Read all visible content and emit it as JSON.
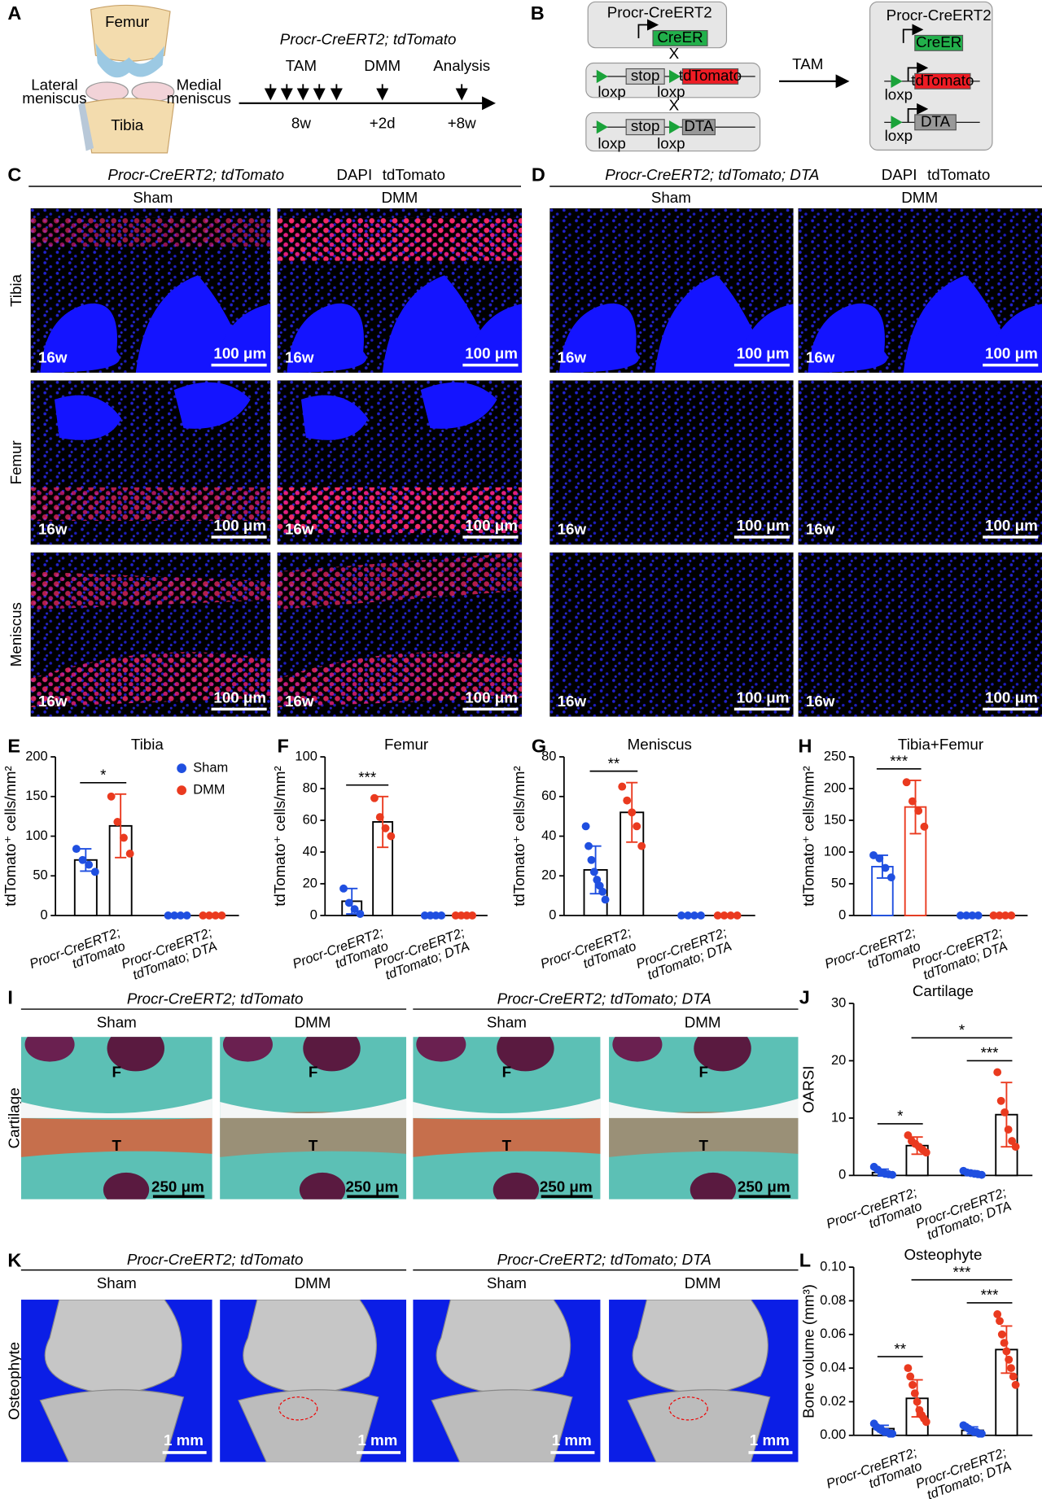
{
  "panel_labels": [
    "A",
    "B",
    "C",
    "D",
    "E",
    "F",
    "G",
    "H",
    "I",
    "J",
    "K",
    "L"
  ],
  "panel_a": {
    "femur": "Femur",
    "lateral": [
      "Lateral",
      "meniscus"
    ],
    "medial": [
      "Medial",
      "meniscus"
    ],
    "tibia": "Tibia",
    "genotype": "Procr-CreERT2; tdTomato",
    "events": [
      "TAM",
      "DMM",
      "Analysis"
    ],
    "times": [
      "8w",
      "+2d",
      "+8w"
    ]
  },
  "panel_b": {
    "driver": "Procr-CreERT2",
    "creer": "CreER",
    "stop": "stop",
    "loxp": "loxp",
    "reporter": "tdTomato",
    "dta": "DTA",
    "cross": "X",
    "tam": "TAM"
  },
  "imaging": {
    "genotypes": [
      "Procr-CreERT2; tdTomato",
      "Procr-CreERT2; tdTomato; DTA"
    ],
    "stains": [
      "DAPI",
      "tdTomato"
    ],
    "conditions": [
      "Sham",
      "DMM"
    ],
    "tissues": [
      "Tibia",
      "Femur",
      "Meniscus"
    ],
    "age": "16w",
    "scale": "100 μm"
  },
  "histology": {
    "row": "Cartilage",
    "femur_mark": "F",
    "tibia_mark": "T",
    "scale": "250 μm"
  },
  "microct": {
    "row": "Osteophyte",
    "scale": "1 mm"
  },
  "chart_data": [
    {
      "type": "bar",
      "title": "Tibia",
      "ylabel": "tdTomato⁺ cells/mm²",
      "ylim": [
        0,
        200
      ],
      "yticks": [
        0,
        50,
        100,
        150,
        200
      ],
      "legend": "upper right",
      "bar_edge": "#000000",
      "categories": [
        [
          "Procr-CreERT2;",
          "tdTomato"
        ],
        [
          "Procr-CreERT2;",
          "tdTomato; DTA"
        ]
      ],
      "series": [
        {
          "name": "Sham",
          "color": "#1f4fe0",
          "values": [
            70,
            0
          ],
          "errors": [
            14,
            0
          ],
          "points": [
            [
              84,
              70,
              64,
              55
            ],
            [
              0,
              0,
              0,
              0
            ]
          ]
        },
        {
          "name": "DMM",
          "color": "#ea3a1f",
          "values": [
            113,
            0
          ],
          "errors": [
            40,
            0
          ],
          "points": [
            [
              150,
              118,
              98,
              78
            ],
            [
              0,
              0,
              0,
              0
            ]
          ]
        }
      ],
      "brackets": [
        {
          "text": "*",
          "from": [
            0,
            0
          ],
          "to": [
            1,
            0
          ]
        }
      ]
    },
    {
      "type": "bar",
      "title": "Femur",
      "ylabel": "tdTomato⁺ cells/mm²",
      "ylim": [
        0,
        100
      ],
      "yticks": [
        0,
        20,
        40,
        60,
        80,
        100
      ],
      "bar_edge": "#000000",
      "categories": [
        [
          "Procr-CreERT2;",
          "tdTomato"
        ],
        [
          "Procr-CreERT2;",
          "tdTomato; DTA"
        ]
      ],
      "series": [
        {
          "name": "Sham",
          "color": "#1f4fe0",
          "values": [
            9,
            0
          ],
          "errors": [
            8,
            0
          ],
          "points": [
            [
              17,
              8,
              4,
              1
            ],
            [
              0,
              0,
              0,
              0
            ]
          ]
        },
        {
          "name": "DMM",
          "color": "#ea3a1f",
          "values": [
            59,
            0
          ],
          "errors": [
            16,
            0
          ],
          "points": [
            [
              74,
              62,
              55,
              50
            ],
            [
              0,
              0,
              0,
              0
            ]
          ]
        }
      ],
      "brackets": [
        {
          "text": "***",
          "from": [
            0,
            0
          ],
          "to": [
            1,
            0
          ]
        }
      ]
    },
    {
      "type": "bar",
      "title": "Meniscus",
      "ylabel": "tdTomato⁺ cells/mm²",
      "ylim": [
        0,
        80
      ],
      "yticks": [
        0,
        20,
        40,
        60,
        80
      ],
      "bar_edge": "#000000",
      "categories": [
        [
          "Procr-CreERT2;",
          "tdTomato"
        ],
        [
          "Procr-CreERT2;",
          "tdTomato; DTA"
        ]
      ],
      "series": [
        {
          "name": "Sham",
          "color": "#1f4fe0",
          "values": [
            23,
            0
          ],
          "errors": [
            12,
            0
          ],
          "points": [
            [
              45,
              35,
              28,
              22,
              18,
              15,
              12,
              8
            ],
            [
              0,
              0,
              0,
              0
            ]
          ]
        },
        {
          "name": "DMM",
          "color": "#ea3a1f",
          "values": [
            52,
            0
          ],
          "errors": [
            15,
            0
          ],
          "points": [
            [
              65,
              58,
              52,
              45,
              35
            ],
            [
              0,
              0,
              0,
              0
            ]
          ]
        }
      ],
      "brackets": [
        {
          "text": "**",
          "from": [
            0,
            0
          ],
          "to": [
            1,
            0
          ]
        }
      ]
    },
    {
      "type": "bar",
      "title": "Tibia+Femur",
      "ylabel": "tdTomato⁺ cells/mm²",
      "ylim": [
        0,
        250
      ],
      "yticks": [
        0,
        50,
        100,
        150,
        200,
        250
      ],
      "bar_edge": "series",
      "categories": [
        [
          "Procr-CreERT2;",
          "tdTomato"
        ],
        [
          "Procr-CreERT2;",
          "tdTomato; DTA"
        ]
      ],
      "series": [
        {
          "name": "Sham",
          "color": "#1f4fe0",
          "values": [
            77,
            0
          ],
          "errors": [
            18,
            0
          ],
          "points": [
            [
              95,
              90,
              75,
              60
            ],
            [
              0,
              0,
              0,
              0
            ]
          ]
        },
        {
          "name": "DMM",
          "color": "#ea3a1f",
          "values": [
            171,
            0
          ],
          "errors": [
            42,
            0
          ],
          "points": [
            [
              210,
              180,
              165,
              140
            ],
            [
              0,
              0,
              0,
              0
            ]
          ]
        }
      ],
      "brackets": [
        {
          "text": "***",
          "from": [
            0,
            0
          ],
          "to": [
            1,
            0
          ]
        }
      ]
    },
    {
      "type": "bar",
      "title": "Cartilage",
      "ylabel": "OARSI",
      "ylim": [
        0,
        30
      ],
      "yticks": [
        0,
        10,
        20,
        30
      ],
      "bar_edge": "#000000",
      "categories": [
        [
          "Procr-CreERT2;",
          "tdTomato"
        ],
        [
          "Procr-CreERT2;",
          "tdTomato; DTA"
        ]
      ],
      "series": [
        {
          "name": "Sham",
          "color": "#1f4fe0",
          "values": [
            0.5,
            0.4
          ],
          "errors": [
            0.6,
            0.4
          ],
          "points": [
            [
              1.5,
              1,
              0.5,
              0.3,
              0.2,
              0.1
            ],
            [
              0.8,
              0.5,
              0.4,
              0.3,
              0.2,
              0.1
            ]
          ]
        },
        {
          "name": "DMM",
          "color": "#ea3a1f",
          "values": [
            5.2,
            10.6
          ],
          "errors": [
            1.5,
            5.6
          ],
          "points": [
            [
              7,
              6,
              5.5,
              5,
              4.5,
              4
            ],
            [
              18,
              13,
              11,
              8,
              6,
              5
            ]
          ]
        }
      ],
      "brackets": [
        {
          "text": "*",
          "from": [
            0,
            0
          ],
          "to": [
            1,
            0
          ]
        },
        {
          "text": "***",
          "from": [
            0,
            1
          ],
          "to": [
            1,
            1
          ]
        },
        {
          "text": "*",
          "from": [
            1,
            0
          ],
          "to": [
            1,
            1
          ]
        }
      ]
    },
    {
      "type": "bar",
      "title": "Osteophyte",
      "ylabel": "Bone volume (mm³)",
      "ylim": [
        0,
        0.1
      ],
      "yticks": [
        {
          "value": 0,
          "label": "0.00"
        },
        {
          "value": 0.02,
          "label": "0.02"
        },
        {
          "value": 0.04,
          "label": "0.04"
        },
        {
          "value": 0.06,
          "label": "0.06"
        },
        {
          "value": 0.08,
          "label": "0.08"
        },
        {
          "value": 0.1,
          "label": "0.10"
        }
      ],
      "bar_edge": "#000000",
      "categories": [
        [
          "Procr-CreERT2;",
          "tdTomato"
        ],
        [
          "Procr-CreERT2;",
          "tdTomato; DTA"
        ]
      ],
      "series": [
        {
          "name": "Sham",
          "color": "#1f4fe0",
          "values": [
            0.004,
            0.003
          ],
          "errors": [
            0.002,
            0.002
          ],
          "points": [
            [
              0.007,
              0.005,
              0.004,
              0.003,
              0.002,
              0.002,
              0.001,
              0.001
            ],
            [
              0.006,
              0.005,
              0.004,
              0.003,
              0.002,
              0.002,
              0.001,
              0.001
            ]
          ]
        },
        {
          "name": "DMM",
          "color": "#ea3a1f",
          "values": [
            0.022,
            0.051
          ],
          "errors": [
            0.011,
            0.014
          ],
          "points": [
            [
              0.04,
              0.035,
              0.03,
              0.025,
              0.02,
              0.015,
              0.012,
              0.01,
              0.008
            ],
            [
              0.072,
              0.068,
              0.06,
              0.055,
              0.05,
              0.045,
              0.04,
              0.035,
              0.03
            ]
          ]
        }
      ],
      "brackets": [
        {
          "text": "**",
          "from": [
            0,
            0
          ],
          "to": [
            1,
            0
          ]
        },
        {
          "text": "***",
          "from": [
            0,
            1
          ],
          "to": [
            1,
            1
          ]
        },
        {
          "text": "***",
          "from": [
            1,
            0
          ],
          "to": [
            1,
            1
          ]
        }
      ]
    }
  ]
}
